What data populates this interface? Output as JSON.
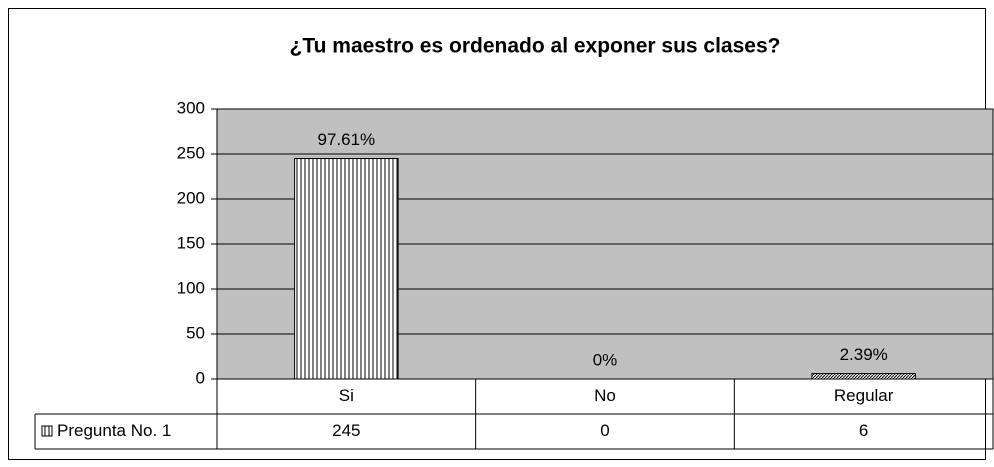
{
  "chart_data": {
    "type": "bar",
    "title": "¿Tu maestro es ordenado al  exponer sus clases?",
    "categories": [
      "Si",
      "No",
      "Regular"
    ],
    "series": [
      {
        "name": "Pregunta No. 1",
        "color": "#ffffff",
        "values": [
          245,
          0,
          6
        ]
      }
    ],
    "annotations": [
      "97.61%",
      "0%",
      "2.39%"
    ],
    "ylim": [
      0,
      300
    ],
    "yticks": [
      0,
      50,
      100,
      150,
      200,
      250,
      300
    ],
    "grid": true,
    "plot_background": "#c0c0c0",
    "data_table": true
  }
}
